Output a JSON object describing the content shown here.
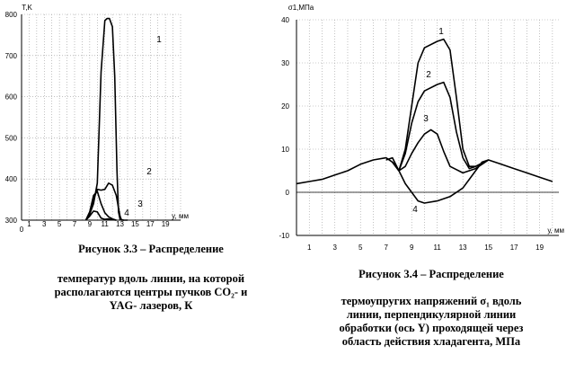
{
  "chart_data": [
    {
      "type": "line",
      "ylabel": "T,K",
      "xlabel": "y, мм",
      "xlim": [
        0,
        21
      ],
      "ylim": [
        300,
        800
      ],
      "x_ticks": [
        1,
        3,
        5,
        7,
        9,
        11,
        13,
        15,
        17,
        19
      ],
      "y_ticks": [
        300,
        400,
        500,
        600,
        700,
        800
      ],
      "x_origin_label": "0",
      "grid": true,
      "series": [
        {
          "name": "1",
          "x": [
            8.5,
            9.0,
            9.5,
            10.0,
            10.5,
            11.0,
            11.3,
            11.6,
            12.0,
            12.3,
            12.6,
            12.8,
            13.0,
            13.5,
            14.0
          ],
          "y": [
            300,
            315,
            340,
            390,
            660,
            785,
            790,
            790,
            770,
            650,
            420,
            320,
            302,
            300,
            300
          ]
        },
        {
          "name": "2",
          "x": [
            8.5,
            9.0,
            9.5,
            10.0,
            10.5,
            11.0,
            11.5,
            12.0,
            12.5,
            12.8,
            13.0,
            13.2,
            13.5
          ],
          "y": [
            300,
            320,
            350,
            375,
            373,
            375,
            390,
            385,
            360,
            330,
            310,
            300,
            300
          ]
        },
        {
          "name": "3",
          "x": [
            8.5,
            9.0,
            9.5,
            10.0,
            10.5,
            11.0,
            11.5,
            12.0,
            12.5
          ],
          "y": [
            300,
            320,
            360,
            370,
            340,
            318,
            308,
            303,
            300
          ]
        },
        {
          "name": "4",
          "x": [
            8.5,
            9.0,
            9.5,
            10.0,
            10.5,
            11.0,
            11.5,
            12.0,
            12.5
          ],
          "y": [
            300,
            310,
            322,
            320,
            305,
            302,
            303,
            301,
            300
          ]
        }
      ]
    },
    {
      "type": "line",
      "ylabel": "σ1,МПа",
      "xlabel": "у, мм",
      "xlim": [
        0,
        20.5
      ],
      "ylim": [
        -10,
        40
      ],
      "x_ticks": [
        1,
        3,
        5,
        7,
        9,
        11,
        13,
        15,
        17,
        19
      ],
      "y_ticks": [
        -10,
        0,
        10,
        20,
        30,
        40
      ],
      "grid": true,
      "series": [
        {
          "name": "1",
          "x": [
            0,
            1,
            2,
            3,
            4,
            5,
            6,
            7,
            7.5,
            8,
            8.5,
            9,
            9.5,
            10,
            11,
            11.5,
            12,
            12.5,
            13,
            13.5,
            14,
            15,
            16,
            17,
            18,
            19,
            20
          ],
          "y": [
            2,
            2.5,
            3,
            4,
            5,
            6.5,
            7.5,
            8,
            7,
            5,
            10,
            20,
            30,
            33.5,
            35,
            35.5,
            33,
            22,
            10,
            6,
            6,
            7.5,
            6.5,
            5.5,
            4.5,
            3.5,
            2.5
          ]
        },
        {
          "name": "2",
          "x": [
            7.5,
            8,
            8.5,
            9,
            9.5,
            10,
            11,
            11.5,
            12,
            12.5,
            13,
            13.5,
            14,
            15
          ],
          "y": [
            7,
            5,
            9,
            16,
            21,
            23.5,
            25,
            25.5,
            22,
            14,
            8,
            5.5,
            6,
            7.5
          ]
        },
        {
          "name": "3",
          "x": [
            7.5,
            8,
            8.5,
            9,
            9.5,
            10,
            10.5,
            11,
            11.5,
            12,
            13,
            14,
            15
          ],
          "y": [
            7,
            5,
            6,
            9,
            11.5,
            13.5,
            14.5,
            13.5,
            9.5,
            6,
            4.5,
            5.5,
            7.5
          ]
        },
        {
          "name": "4",
          "x": [
            7,
            7.5,
            8,
            8.5,
            9,
            9.5,
            10,
            11,
            12,
            13,
            13.5,
            14,
            14.5,
            15
          ],
          "y": [
            7.5,
            8,
            5,
            2,
            0,
            -2,
            -2.5,
            -2,
            -1,
            1,
            3,
            5,
            7,
            7.5
          ]
        }
      ]
    }
  ],
  "captions": {
    "left_title": "Рисунок 3.3 – Распределение",
    "left_body": [
      "температур вдоль линии, на которой",
      "располагаются центры пучков CO₂- и",
      "YAG- лазеров, К"
    ],
    "right_title": "Рисунок 3.4 – Распределение",
    "right_body": [
      "термоупругих напряжений  σ₁ вдоль",
      "линии,  перпендикулярной линии",
      "обработки (ось Y) проходящей через",
      "область действия хладагента, МПа"
    ]
  }
}
